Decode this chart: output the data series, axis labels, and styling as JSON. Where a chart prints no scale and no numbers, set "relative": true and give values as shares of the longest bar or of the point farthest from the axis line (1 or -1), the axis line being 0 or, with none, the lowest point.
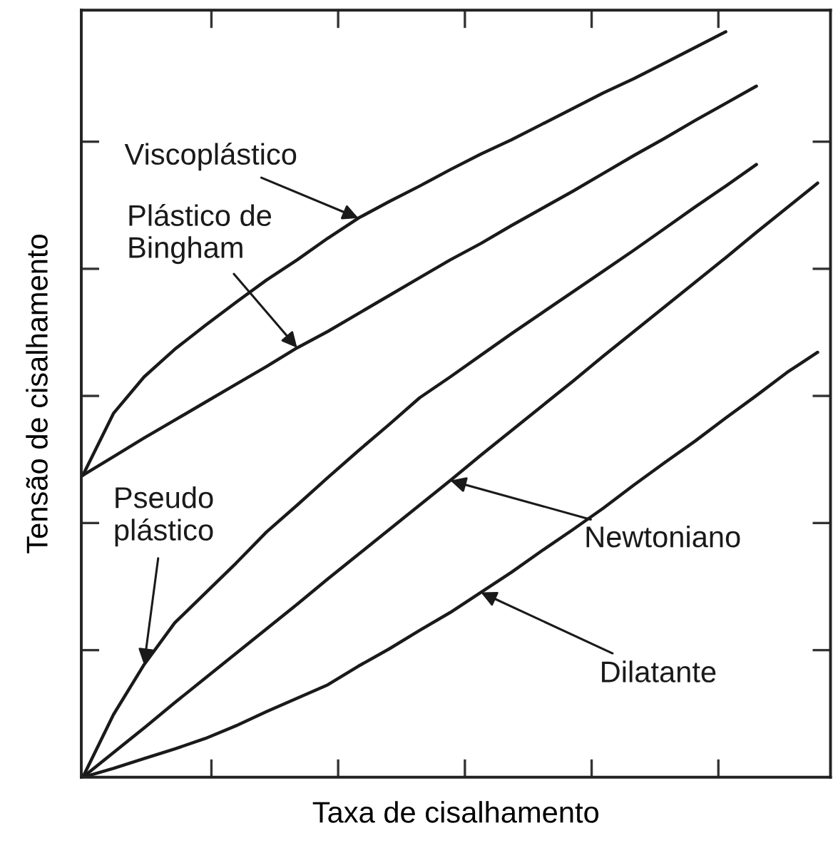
{
  "chart_data": {
    "type": "line",
    "relative": true,
    "xlabel": "Taxa de cisalhamento",
    "ylabel": "Tensão de cisalhamento",
    "tick_labels": false,
    "annotations": [
      "Viscoplástico",
      "Plástico de\nBingham",
      "Pseudo\nplástico",
      "Newtoniano",
      "Dilatante"
    ],
    "grid": false,
    "legend": false,
    "marker": "none",
    "line_style": "solid",
    "categories": [
      null,
      null,
      null,
      null,
      null,
      null,
      null,
      null,
      null,
      null,
      null,
      null,
      null,
      null,
      null,
      null,
      null,
      null,
      null,
      null,
      null,
      null,
      null,
      null,
      null
    ],
    "series": [
      {
        "color": "#1a1a1a",
        "values": [
          0.405,
          0.488,
          0.537,
          0.574,
          0.606,
          0.637,
          0.667,
          0.694,
          0.723,
          0.75,
          0.772,
          0.793,
          0.815,
          0.836,
          0.855,
          0.876,
          0.897,
          0.918,
          0.937,
          0.958,
          0.979,
          1,
          null,
          null,
          null
        ]
      },
      {
        "color": "#1a1a1a",
        "values": [
          0.405,
          0.43,
          0.455,
          0.479,
          0.503,
          0.527,
          0.551,
          0.576,
          0.598,
          0.622,
          0.646,
          0.67,
          0.694,
          0.716,
          0.74,
          0.763,
          0.786,
          0.81,
          0.834,
          0.857,
          0.881,
          0.904,
          0.927,
          null,
          null
        ]
      },
      {
        "color": "#1a1a1a",
        "values": [
          0,
          0.084,
          0.151,
          0.207,
          0.247,
          0.287,
          0.329,
          0.365,
          0.402,
          0.438,
          0.473,
          0.509,
          0.537,
          0.566,
          0.595,
          0.623,
          0.651,
          0.679,
          0.707,
          0.736,
          0.765,
          0.793,
          0.822,
          null,
          null
        ]
      },
      {
        "color": "#1a1a1a",
        "values": [
          0,
          0.033,
          0.066,
          0.1,
          0.133,
          0.166,
          0.199,
          0.232,
          0.266,
          0.299,
          0.332,
          0.365,
          0.398,
          0.432,
          0.465,
          0.498,
          0.531,
          0.565,
          0.598,
          0.631,
          0.664,
          0.697,
          0.731,
          0.764,
          0.797
        ]
      },
      {
        "color": "#1a1a1a",
        "values": [
          0,
          0.012,
          0.025,
          0.038,
          0.052,
          0.069,
          0.088,
          0.106,
          0.124,
          0.149,
          0.172,
          0.197,
          0.221,
          0.248,
          0.275,
          0.304,
          0.332,
          0.361,
          0.392,
          0.422,
          0.451,
          0.482,
          0.512,
          0.543,
          0.57
        ]
      }
    ]
  }
}
